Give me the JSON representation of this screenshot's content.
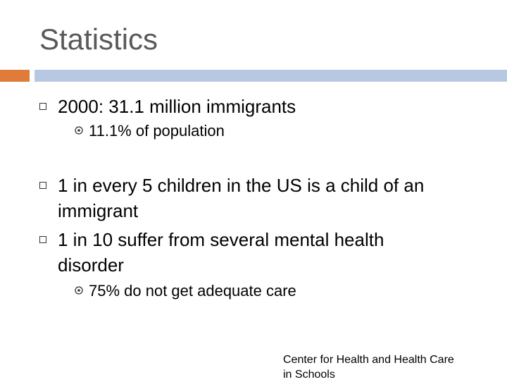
{
  "slide": {
    "title": "Statistics",
    "bullets": [
      {
        "lines": [
          "2000: 31.1 million immigrants"
        ],
        "sub": [
          "11.1% of population"
        ]
      },
      {
        "lines": [
          "1 in every 5 children in the US is a child of an",
          "immigrant"
        ],
        "sub": []
      },
      {
        "lines": [
          "1 in 10 suffer from several mental health",
          "disorder"
        ],
        "sub": [
          "75% do not get adequate care"
        ]
      }
    ],
    "source_lines": [
      "Center for Health and Health Care",
      "in Schools"
    ]
  },
  "colors": {
    "title": "#595959",
    "accent_bar": "#e07b39",
    "header_bar": "#b7c9e2"
  },
  "icons": {
    "level1_bullet": "square-outline-icon",
    "level2_bullet": "circled-dot-icon"
  }
}
